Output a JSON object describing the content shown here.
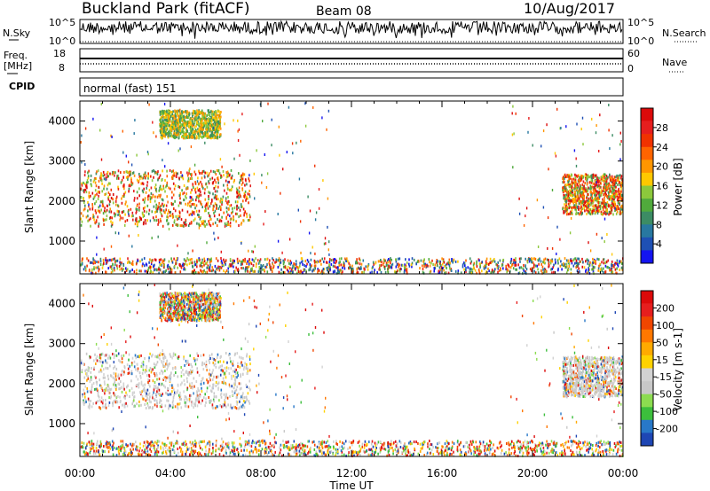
{
  "header": {
    "station": "Buckland Park (fitACF)",
    "beam": "Beam 08",
    "date": "10/Aug/2017"
  },
  "aux_panels": {
    "noise": {
      "left_label": "N.Sky",
      "right_label": "N.Search",
      "ticks_left": [
        "10^5",
        "10^0"
      ],
      "ticks_right": [
        "10^5",
        "10^0"
      ]
    },
    "freq": {
      "left_label_line1": "Freq.",
      "left_label_line2": "[MHz]",
      "right_label": "Nave",
      "ticks_left": [
        "18",
        "8"
      ],
      "ticks_right": [
        "60",
        "0"
      ]
    },
    "cpid": {
      "label": "CPID",
      "text": "normal (fast) 151"
    }
  },
  "chart_data": [
    {
      "type": "heatmap",
      "name": "power",
      "ylabel": "Slant Range [km]",
      "ylim": [
        180,
        4500
      ],
      "yticks": [
        "1000",
        "2000",
        "3000",
        "4000"
      ],
      "colorbar": {
        "label": "Power [dB]",
        "ticks": [
          "4",
          "8",
          "12",
          "16",
          "20",
          "24",
          "28"
        ],
        "colors": [
          "#1414f0",
          "#1e50b4",
          "#2878a0",
          "#3c8c64",
          "#50aa3c",
          "#8cc83c",
          "#ffc800",
          "#ff9600",
          "#ff6400",
          "#f03200",
          "#e61e1e",
          "#dc0a0a"
        ]
      },
      "regions": [
        {
          "t": [
            0,
            7.5
          ],
          "r": [
            1400,
            2800
          ],
          "level": "high"
        },
        {
          "t": [
            3.5,
            6.2
          ],
          "r": [
            3600,
            4300
          ],
          "level": "mid"
        },
        {
          "t": [
            0,
            24
          ],
          "r": [
            180,
            600
          ],
          "level": "low"
        },
        {
          "t": [
            21.3,
            24
          ],
          "r": [
            1700,
            2700
          ],
          "level": "high"
        }
      ]
    },
    {
      "type": "heatmap",
      "name": "velocity",
      "ylabel": "Slant Range [km]",
      "ylim": [
        180,
        4500
      ],
      "yticks": [
        "1000",
        "2000",
        "3000",
        "4000"
      ],
      "colorbar": {
        "label": "Velocity [m s-1]",
        "ticks": [
          "200",
          "100",
          "50",
          "15",
          "-15",
          "-50",
          "-100",
          "-200"
        ],
        "colors": [
          "#1e46b4",
          "#2878c8",
          "#3cbe3c",
          "#8cdc50",
          "#c8c8c8",
          "#d2d2d2",
          "#ffd200",
          "#ffaa00",
          "#ff7800",
          "#f04600",
          "#e61e1e",
          "#dc0a0a"
        ]
      },
      "regions": [
        {
          "t": [
            0,
            7.5
          ],
          "r": [
            1400,
            2800
          ],
          "level": "grey"
        },
        {
          "t": [
            3.5,
            6.2
          ],
          "r": [
            3600,
            4300
          ],
          "level": "mixed"
        },
        {
          "t": [
            0,
            24
          ],
          "r": [
            180,
            600
          ],
          "level": "mixed"
        },
        {
          "t": [
            21.3,
            24
          ],
          "r": [
            1700,
            2700
          ],
          "level": "grey"
        }
      ]
    }
  ],
  "xaxis": {
    "label": "Time UT",
    "ticks": [
      "00:00",
      "04:00",
      "08:00",
      "12:00",
      "16:00",
      "20:00",
      "00:00"
    ]
  }
}
